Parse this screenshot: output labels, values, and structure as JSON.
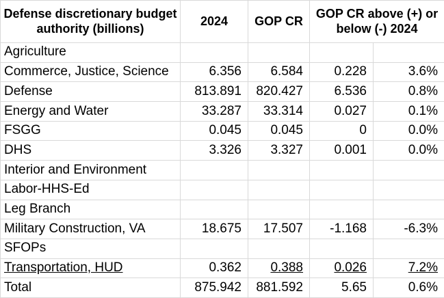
{
  "chart_data": {
    "type": "table",
    "title": "Defense discretionary budget authority (billions)",
    "header": {
      "label_col": "Defense discretionary budget authority (billions)",
      "col_2024": "2024",
      "col_gop_cr": "GOP CR",
      "col_diff_group": "GOP CR above (+) or below (-) 2024"
    },
    "rows": [
      {
        "label": "Agriculture",
        "y2024": "",
        "gop_cr": "",
        "diff": "",
        "pct": ""
      },
      {
        "label": "Commerce, Justice, Science",
        "y2024": "6.356",
        "gop_cr": "6.584",
        "diff": "0.228",
        "pct": "3.6%"
      },
      {
        "label": "Defense",
        "y2024": "813.891",
        "gop_cr": "820.427",
        "diff": "6.536",
        "pct": "0.8%"
      },
      {
        "label": "Energy and Water",
        "y2024": "33.287",
        "gop_cr": "33.314",
        "diff": "0.027",
        "pct": "0.1%"
      },
      {
        "label": "FSGG",
        "y2024": "0.045",
        "gop_cr": "0.045",
        "diff": "0",
        "pct": "0.0%"
      },
      {
        "label": "DHS",
        "y2024": "3.326",
        "gop_cr": "3.327",
        "diff": "0.001",
        "pct": "0.0%"
      },
      {
        "label": "Interior and Environment",
        "y2024": "",
        "gop_cr": "",
        "diff": "",
        "pct": ""
      },
      {
        "label": "Labor-HHS-Ed",
        "y2024": "",
        "gop_cr": "",
        "diff": "",
        "pct": ""
      },
      {
        "label": "Leg Branch",
        "y2024": "",
        "gop_cr": "",
        "diff": "",
        "pct": ""
      },
      {
        "label": "Military Construction, VA",
        "y2024": "18.675",
        "gop_cr": "17.507",
        "diff": "-1.168",
        "pct": "-6.3%"
      },
      {
        "label": "SFOPs",
        "y2024": "",
        "gop_cr": "",
        "diff": "",
        "pct": ""
      },
      {
        "label": "Transportation, HUD",
        "y2024": "0.362",
        "gop_cr": "0.388",
        "diff": "0.026",
        "pct": "7.2%"
      },
      {
        "label": "Total",
        "y2024": "875.942",
        "gop_cr": "881.592",
        "diff": "5.65",
        "pct": "0.6%"
      }
    ],
    "layout": {
      "grid": true,
      "numeric_alignment": "right",
      "underlined_row": "Transportation, HUD"
    }
  },
  "colors": {
    "gridline": "#d9d9d9",
    "text": "#000000",
    "background": "#ffffff"
  }
}
